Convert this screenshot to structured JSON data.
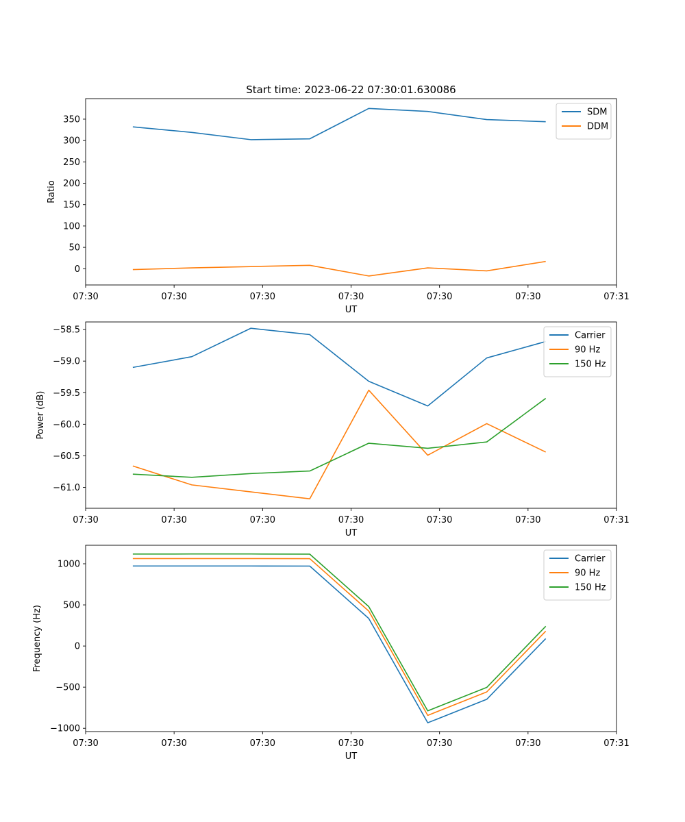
{
  "figure": {
    "title": "Start time: 2023-06-22 07:30:01.630086"
  },
  "chart_data": [
    {
      "type": "line",
      "xlabel": "UT",
      "ylabel": "Ratio",
      "x": [
        1,
        2,
        3,
        4,
        5,
        6,
        7,
        8
      ],
      "xlim": [
        0.2,
        9.2
      ],
      "xticks": [
        0.2,
        1.7,
        3.2,
        4.7,
        6.2,
        7.7,
        9.2
      ],
      "xtick_labels": [
        "07:30",
        "07:30",
        "07:30",
        "07:30",
        "07:30",
        "07:30",
        "07:31"
      ],
      "ylim": [
        -38,
        398
      ],
      "yticks": [
        0,
        50,
        100,
        150,
        200,
        250,
        300,
        350
      ],
      "ytick_labels": [
        "0",
        "50",
        "100",
        "150",
        "200",
        "250",
        "300",
        "350"
      ],
      "legend_position": "top-right",
      "series": [
        {
          "name": "SDM",
          "color": "#1f77b4",
          "values": [
            332,
            319,
            302,
            304,
            375,
            368,
            349,
            344
          ]
        },
        {
          "name": "DDM",
          "color": "#ff7f0e",
          "values": [
            -2,
            2,
            5,
            8,
            -17,
            2,
            -5,
            17
          ]
        }
      ]
    },
    {
      "type": "line",
      "xlabel": "UT",
      "ylabel": "Power (dB)",
      "x": [
        1,
        2,
        3,
        4,
        5,
        6,
        7,
        8
      ],
      "xlim": [
        0.2,
        9.2
      ],
      "xticks": [
        0.2,
        1.7,
        3.2,
        4.7,
        6.2,
        7.7,
        9.2
      ],
      "xtick_labels": [
        "07:30",
        "07:30",
        "07:30",
        "07:30",
        "07:30",
        "07:30",
        "07:31"
      ],
      "ylim": [
        -61.33,
        -58.38
      ],
      "yticks": [
        -61.0,
        -60.5,
        -60.0,
        -59.5,
        -59.0,
        -58.5
      ],
      "ytick_labels": [
        "−61.0",
        "−60.5",
        "−60.0",
        "−59.5",
        "−59.0",
        "−58.5"
      ],
      "legend_position": "top-right",
      "series": [
        {
          "name": "Carrier",
          "color": "#1f77b4",
          "values": [
            -59.1,
            -58.93,
            -58.48,
            -58.58,
            -59.32,
            -59.71,
            -58.95,
            -58.69
          ]
        },
        {
          "name": "90 Hz",
          "color": "#ff7f0e",
          "values": [
            -60.66,
            -60.96,
            -61.07,
            -61.18,
            -59.46,
            -60.49,
            -59.99,
            -60.44
          ]
        },
        {
          "name": "150 Hz",
          "color": "#2ca02c",
          "values": [
            -60.79,
            -60.84,
            -60.78,
            -60.74,
            -60.3,
            -60.38,
            -60.28,
            -59.59
          ]
        }
      ]
    },
    {
      "type": "line",
      "xlabel": "UT",
      "ylabel": "Frequency (Hz)",
      "x": [
        1,
        2,
        3,
        4,
        5,
        6,
        7,
        8
      ],
      "xlim": [
        0.2,
        9.2
      ],
      "xticks": [
        0.2,
        1.7,
        3.2,
        4.7,
        6.2,
        7.7,
        9.2
      ],
      "xtick_labels": [
        "07:30",
        "07:30",
        "07:30",
        "07:30",
        "07:30",
        "07:30",
        "07:31"
      ],
      "ylim": [
        -1040,
        1225
      ],
      "yticks": [
        -1000,
        -500,
        0,
        500,
        1000
      ],
      "ytick_labels": [
        "−1000",
        "−500",
        "0",
        "500",
        "1000"
      ],
      "legend_position": "top-right",
      "series": [
        {
          "name": "Carrier",
          "color": "#1f77b4",
          "values": [
            973,
            973,
            973,
            972,
            335,
            -933,
            -648,
            90
          ]
        },
        {
          "name": "90 Hz",
          "color": "#ff7f0e",
          "values": [
            1063,
            1063,
            1063,
            1062,
            425,
            -843,
            -558,
            180
          ]
        },
        {
          "name": "150 Hz",
          "color": "#2ca02c",
          "values": [
            1118,
            1119,
            1119,
            1117,
            480,
            -788,
            -503,
            240
          ]
        }
      ]
    }
  ]
}
